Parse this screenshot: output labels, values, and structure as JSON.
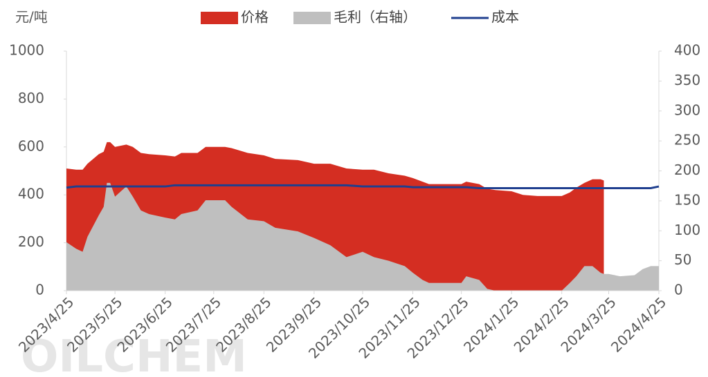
{
  "chart_data": {
    "type": "area",
    "y_label": "元/吨",
    "watermark": "OILCHEM",
    "x": [
      "2023/4/25",
      "2023/5/1",
      "2023/5/5",
      "2023/5/8",
      "2023/5/15",
      "2023/5/18",
      "2023/5/20",
      "2023/5/22",
      "2023/5/25",
      "2023/6/1",
      "2023/6/5",
      "2023/6/10",
      "2023/6/15",
      "2023/6/25",
      "2023/7/1",
      "2023/7/5",
      "2023/7/15",
      "2023/7/20",
      "2023/8/1",
      "2023/8/5",
      "2023/8/15",
      "2023/8/25",
      "2023/9/1",
      "2023/9/15",
      "2023/9/25",
      "2023/10/5",
      "2023/10/15",
      "2023/10/25",
      "2023/11/1",
      "2023/11/10",
      "2023/11/20",
      "2023/11/25",
      "2023/12/1",
      "2023/12/5",
      "2023/12/25",
      "2023/12/28",
      "2024/1/5",
      "2024/1/10",
      "2024/1/15",
      "2024/1/25",
      "2024/2/1",
      "2024/2/10",
      "2024/2/25",
      "2024/3/1",
      "2024/3/5",
      "2024/3/10",
      "2024/3/15",
      "2024/3/20",
      "2024/3/22",
      "2024/3/25",
      "2024/4/1",
      "2024/4/10",
      "2024/4/15",
      "2024/4/20",
      "2024/4/25"
    ],
    "series": [
      {
        "name": "价格",
        "color": "#d42e22",
        "kind": "area",
        "axis": "y",
        "values": [
          510,
          505,
          505,
          530,
          570,
          580,
          620,
          620,
          600,
          610,
          600,
          575,
          570,
          565,
          560,
          575,
          575,
          600,
          600,
          595,
          575,
          565,
          550,
          545,
          530,
          530,
          510,
          505,
          505,
          490,
          480,
          470,
          455,
          445,
          445,
          455,
          445,
          425,
          420,
          415,
          400,
          395,
          395,
          410,
          430,
          450,
          465,
          465,
          460,
          null,
          null,
          null,
          null,
          null,
          null
        ]
      },
      {
        "name": "毛利（右轴）",
        "color": "#bfbfbf",
        "kind": "area",
        "axis": "y2",
        "values": [
          81,
          70,
          65,
          90,
          126,
          140,
          180,
          180,
          157,
          174,
          157,
          134,
          128,
          122,
          119,
          128,
          134,
          151,
          151,
          140,
          119,
          116,
          105,
          99,
          88,
          76,
          56,
          65,
          56,
          50,
          41,
          30,
          18,
          13,
          13,
          24,
          18,
          3,
          0,
          0,
          0,
          0,
          0,
          13,
          24,
          41,
          41,
          30,
          28,
          28,
          24,
          26,
          36,
          41,
          41
        ]
      },
      {
        "name": "成本",
        "color": "#1f3f8f",
        "kind": "line",
        "axis": "y",
        "values": [
          430,
          435,
          435,
          435,
          435,
          435,
          435,
          435,
          435,
          435,
          435,
          435,
          435,
          435,
          440,
          440,
          440,
          440,
          440,
          440,
          440,
          440,
          440,
          440,
          440,
          440,
          440,
          435,
          435,
          435,
          435,
          432,
          432,
          432,
          432,
          432,
          428,
          428,
          428,
          428,
          428,
          428,
          428,
          428,
          428,
          428,
          428,
          428,
          428,
          428,
          428,
          428,
          428,
          428,
          435
        ]
      }
    ],
    "xlim": [
      "2023/4/25",
      "2024/4/25"
    ],
    "xticks": [
      "2023/4/25",
      "2023/5/25",
      "2023/6/25",
      "2023/7/25",
      "2023/8/25",
      "2023/9/25",
      "2023/10/25",
      "2023/11/25",
      "2023/12/25",
      "2024/1/25",
      "2024/2/25",
      "2024/3/25",
      "2024/4/25"
    ],
    "ylim": [
      0,
      1000
    ],
    "yticks": [
      0,
      200,
      400,
      600,
      800,
      1000
    ],
    "y2lim": [
      0,
      400
    ],
    "y2ticks": [
      0,
      50,
      100,
      150,
      200,
      250,
      300,
      350,
      400
    ]
  }
}
